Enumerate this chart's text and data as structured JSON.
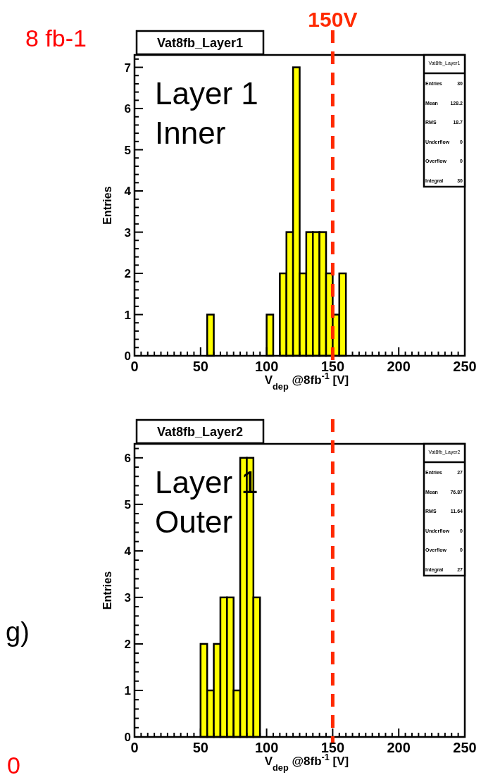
{
  "chart_data": [
    {
      "type": "histogram",
      "title": "Vat8fb_Layer1",
      "xlabel": "V$_{dep}$ @8fb$^{-1}$ [V]",
      "ylabel": "Entries",
      "bins": [
        55,
        60,
        65,
        70,
        75,
        80,
        85,
        90,
        95,
        100,
        105,
        110,
        115,
        120,
        125,
        130,
        135,
        140,
        145,
        150,
        155,
        160
      ],
      "values": [
        1,
        0,
        0,
        0,
        0,
        0,
        0,
        0,
        0,
        1,
        0,
        2,
        3,
        7,
        2,
        3,
        3,
        3,
        2,
        1,
        2
      ],
      "color": "#ffff00",
      "xlim": [
        0,
        250
      ],
      "xticks": [
        0,
        50,
        100,
        150,
        200,
        250
      ],
      "ylim": [
        0,
        7.3
      ],
      "yticks": [
        0,
        1,
        2,
        3,
        4,
        5,
        6,
        7
      ],
      "ref_lines": [
        {
          "axis": "x",
          "value": 150,
          "label": "150V",
          "color": "#ff2a00",
          "line_style": "dashed"
        }
      ],
      "annotations": [
        "Layer 1\nInner",
        "Vat8fb_Layer1",
        "Entries 30",
        "Mean 128.2",
        "RMS 18.7",
        "Underflow 0",
        "Overflow 0",
        "Integral 30",
        "8 fb-1"
      ],
      "grid": false
    },
    {
      "type": "histogram",
      "title": "Vat8fb_Layer2",
      "xlabel": "V$_{dep}$ @8fb$^{-1}$ [V]",
      "ylabel": "Entries",
      "bins": [
        50,
        55,
        60,
        65,
        70,
        75,
        80,
        85,
        90,
        95
      ],
      "values": [
        2,
        1,
        2,
        3,
        3,
        1,
        6,
        6,
        3
      ],
      "color": "#ffff00",
      "xlim": [
        0,
        250
      ],
      "xticks": [
        0,
        50,
        100,
        150,
        200,
        250
      ],
      "ylim": [
        0,
        6.3
      ],
      "yticks": [
        0,
        1,
        2,
        3,
        4,
        5,
        6
      ],
      "ref_lines": [
        {
          "axis": "x",
          "value": 150,
          "color": "#ff2a00",
          "line_style": "dashed"
        }
      ],
      "annotations": [
        "Layer 1\nOuter",
        "Vat8fb_Layer2",
        "Entries 27",
        "Mean 76.87",
        "RMS 11.64",
        "Underflow 0",
        "Overflow 0",
        "Integral 27",
        "g)",
        "0"
      ],
      "grid": false
    }
  ]
}
